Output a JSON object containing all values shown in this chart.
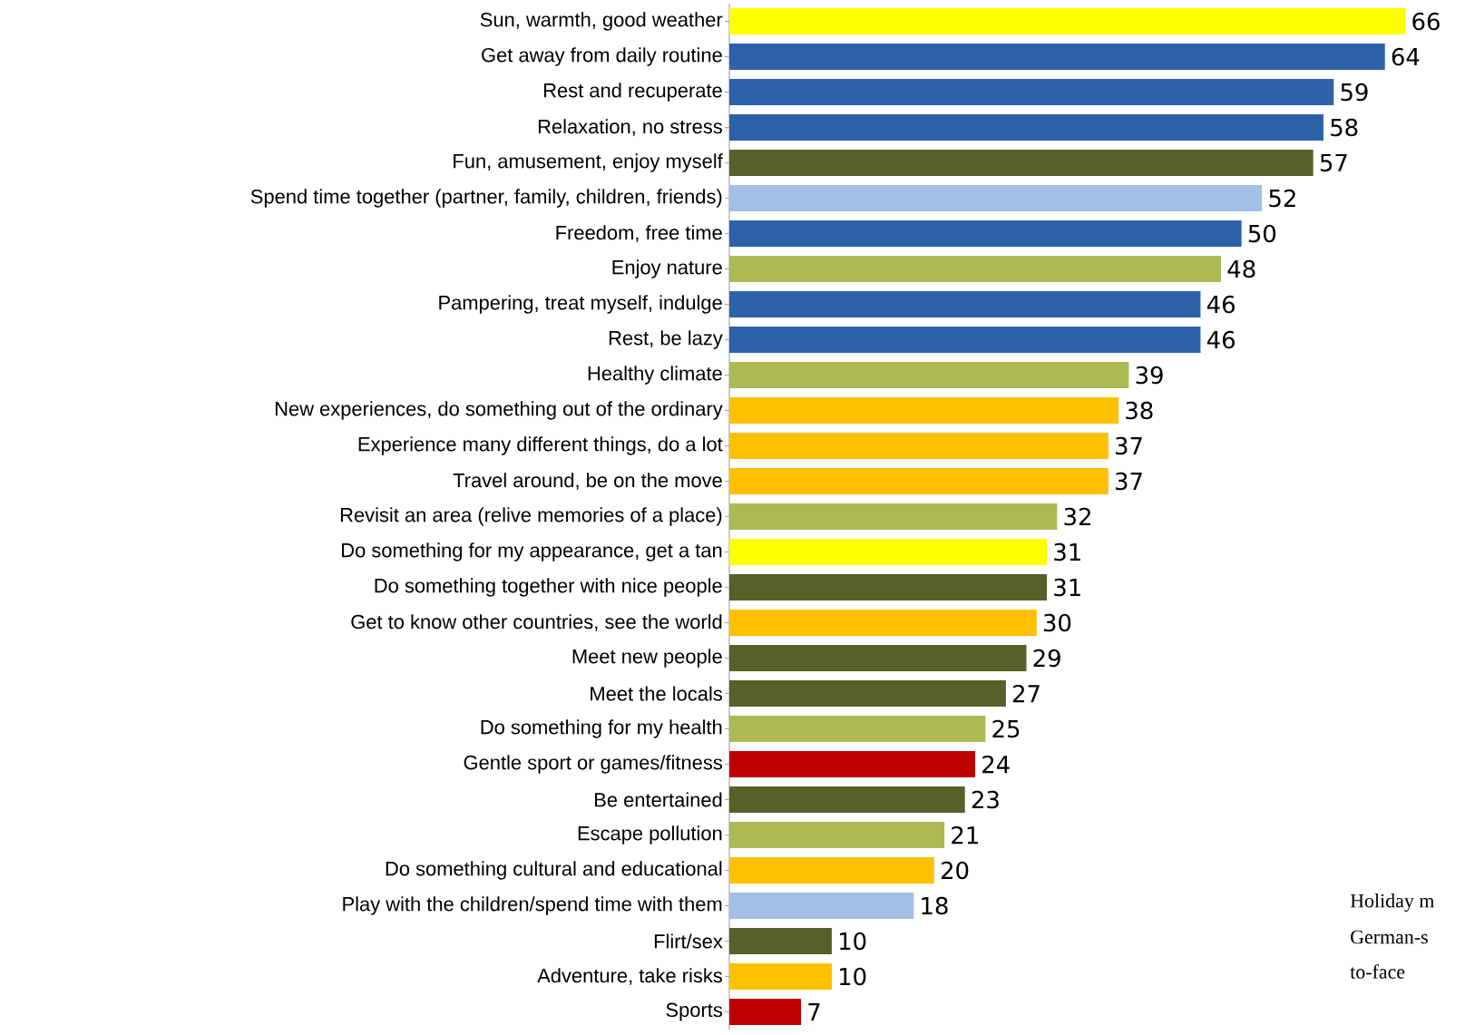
{
  "chart_data": {
    "type": "bar",
    "orientation": "horizontal",
    "data_labels": true,
    "categories": [
      "Sun, warmth, good weather",
      "Get away from daily routine",
      "Rest and recuperate",
      "Relaxation, no stress",
      "Fun, amusement, enjoy myself",
      "Spend time together (partner, family, children, friends)",
      "Freedom, free time",
      "Enjoy nature",
      "Pampering, treat myself, indulge",
      "Rest, be lazy",
      "Healthy climate",
      "New experiences, do something out of the ordinary",
      "Experience many different things, do a lot",
      "Travel around, be on the move",
      "Revisit an area (relive memories of a place)",
      "Do something for my appearance, get a tan",
      "Do something together with nice people",
      "Get to know other countries, see the world",
      "Meet new people",
      "Meet the locals",
      "Do something for my health",
      "Gentle sport or games/fitness",
      "Be entertained",
      "Escape pollution",
      "Do something cultural and educational",
      "Play with the children/spend time with them",
      "Flirt/sex",
      "Adventure, take risks",
      "Sports"
    ],
    "values": [
      66,
      64,
      59,
      58,
      57,
      52,
      50,
      48,
      46,
      46,
      39,
      38,
      37,
      37,
      32,
      31,
      31,
      30,
      29,
      27,
      25,
      24,
      23,
      21,
      20,
      18,
      10,
      10,
      7
    ],
    "colors": [
      "#ffff00",
      "#2e62a8",
      "#2e62a8",
      "#2e62a8",
      "#556128",
      "#a3bfe6",
      "#2e62a8",
      "#adb952",
      "#2e62a8",
      "#2e62a8",
      "#adb952",
      "#ffc000",
      "#ffc000",
      "#ffc000",
      "#adb952",
      "#ffff00",
      "#556128",
      "#ffc000",
      "#556128",
      "#556128",
      "#adb952",
      "#c00000",
      "#556128",
      "#adb952",
      "#ffc000",
      "#a3bfe6",
      "#556128",
      "#ffc000",
      "#c00000"
    ],
    "annotations": [
      "Holiday m",
      "German-s",
      "to-face"
    ]
  }
}
